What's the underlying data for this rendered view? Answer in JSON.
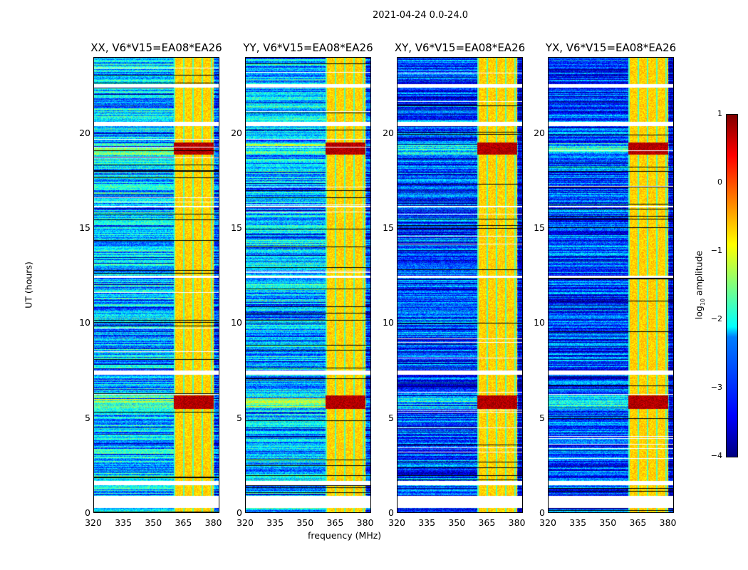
{
  "chart_data": {
    "type": "heatmap",
    "title": "2021-04-24 0.0-24.0",
    "xlabel": "frequency (MHz)",
    "ylabel": "UT (hours)",
    "xlim": [
      320,
      383
    ],
    "ylim": [
      0,
      24
    ],
    "xticks": [
      "320",
      "335",
      "350",
      "365",
      "380"
    ],
    "yticks": [
      "0",
      "5",
      "10",
      "15",
      "20"
    ],
    "panels": [
      {
        "title": "XX, V6*V15=EA08*EA26"
      },
      {
        "title": "YY, V6*V15=EA08*EA26"
      },
      {
        "title": "XY, V6*V15=EA08*EA26"
      },
      {
        "title": "YX, V6*V15=EA08*EA26"
      }
    ],
    "colorbar": {
      "label_pre": "log",
      "label_sub": "10",
      "label_post": " amplitude",
      "range": [
        -4,
        1
      ],
      "ticks": [
        "1",
        "0",
        "−1",
        "−2",
        "−3",
        "−4"
      ],
      "colormap": "jet"
    },
    "rfi_band_mhz": [
      360,
      380
    ],
    "high_rfi_hours": [
      [
        18.9,
        19.5
      ],
      [
        5.5,
        6.2
      ]
    ],
    "flagged_hours": [
      [
        0.3,
        0.9
      ],
      [
        1.5,
        1.7
      ],
      [
        20.4,
        20.6
      ],
      [
        22.4,
        22.6
      ],
      [
        7.3,
        7.5
      ],
      [
        12.4,
        12.5
      ],
      [
        16.1,
        16.2
      ]
    ]
  }
}
